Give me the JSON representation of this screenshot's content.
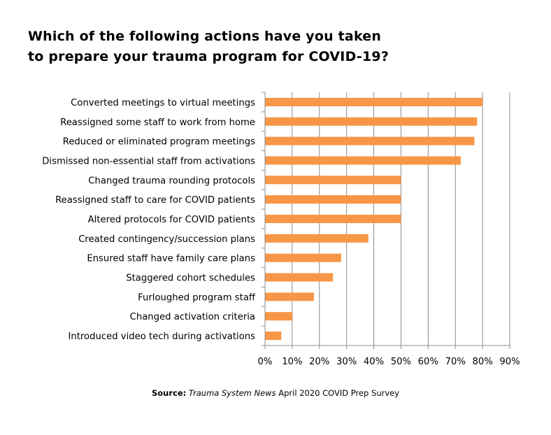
{
  "chart_data": {
    "type": "bar",
    "orientation": "horizontal",
    "title_lines": [
      "Which of the following actions have you taken",
      "to prepare your trauma program for COVID-19?"
    ],
    "categories": [
      "Converted  meetings to virtual meetings",
      "Reassigned some staff to work from home",
      "Reduced or eliminated program meetings",
      "Dismissed non-essential staff from activations",
      "Changed trauma rounding protocols",
      "Reassigned staff to care for COVID patients",
      "Altered protocols for COVID patients",
      "Created contingency/succession plans",
      "Ensured staff have family care plans",
      "Staggered cohort schedules",
      "Furloughed program staff",
      "Changed activation criteria",
      "Introduced video tech during activations"
    ],
    "values": [
      80,
      78,
      77,
      72,
      50,
      50,
      50,
      38,
      28,
      25,
      18,
      10,
      6
    ],
    "xlim": [
      0,
      90
    ],
    "x_ticks": [
      0,
      10,
      20,
      30,
      40,
      50,
      60,
      70,
      80,
      90
    ],
    "x_tick_labels": [
      "0%",
      "10%",
      "20%",
      "30%",
      "40%",
      "50%",
      "60%",
      "70%",
      "80%",
      "90%"
    ],
    "grid": "vertical",
    "legend": "none",
    "bar_color": "#F79646"
  },
  "source": {
    "label": "Source:",
    "publication": "Trauma System News",
    "rest": "April 2020  COVID Prep Survey"
  }
}
